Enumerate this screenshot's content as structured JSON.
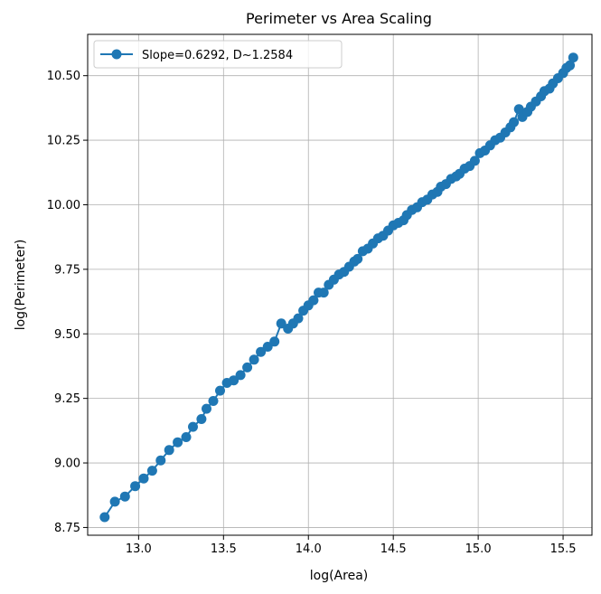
{
  "chart_data": {
    "type": "line",
    "title": "Perimeter vs Area Scaling",
    "xlabel": "log(Area)",
    "ylabel": "log(Perimeter)",
    "xlim": [
      12.7,
      15.67
    ],
    "ylim": [
      8.72,
      10.66
    ],
    "xticks": [
      "13.0",
      "13.5",
      "14.0",
      "14.5",
      "15.0",
      "15.5"
    ],
    "yticks": [
      "8.75",
      "9.00",
      "9.25",
      "9.50",
      "9.75",
      "10.00",
      "10.25",
      "10.50"
    ],
    "grid": true,
    "legend_position": "top-left",
    "color": "#1f77b4",
    "series": [
      {
        "name": "Slope=0.6292, D~1.2584",
        "x": [
          12.8,
          12.86,
          12.92,
          12.98,
          13.03,
          13.08,
          13.13,
          13.18,
          13.23,
          13.28,
          13.32,
          13.37,
          13.4,
          13.44,
          13.48,
          13.52,
          13.56,
          13.6,
          13.64,
          13.68,
          13.72,
          13.76,
          13.8,
          13.84,
          13.88,
          13.91,
          13.94,
          13.97,
          14.0,
          14.03,
          14.06,
          14.09,
          14.12,
          14.15,
          14.18,
          14.21,
          14.24,
          14.27,
          14.29,
          14.32,
          14.35,
          14.38,
          14.41,
          14.44,
          14.47,
          14.5,
          14.53,
          14.56,
          14.58,
          14.61,
          14.64,
          14.67,
          14.7,
          14.73,
          14.76,
          14.78,
          14.81,
          14.84,
          14.87,
          14.89,
          14.92,
          14.95,
          14.98,
          15.01,
          15.04,
          15.07,
          15.1,
          15.13,
          15.16,
          15.19,
          15.21,
          15.24,
          15.26,
          15.29,
          15.31,
          15.34,
          15.37,
          15.39,
          15.42,
          15.44,
          15.47,
          15.5,
          15.52,
          15.54,
          15.56
        ],
        "y": [
          8.79,
          8.85,
          8.87,
          8.91,
          8.94,
          8.97,
          9.01,
          9.05,
          9.08,
          9.1,
          9.14,
          9.17,
          9.21,
          9.24,
          9.28,
          9.31,
          9.32,
          9.34,
          9.37,
          9.4,
          9.43,
          9.45,
          9.47,
          9.54,
          9.52,
          9.54,
          9.56,
          9.59,
          9.61,
          9.63,
          9.66,
          9.66,
          9.69,
          9.71,
          9.73,
          9.74,
          9.76,
          9.78,
          9.79,
          9.82,
          9.83,
          9.85,
          9.87,
          9.88,
          9.9,
          9.92,
          9.93,
          9.94,
          9.96,
          9.98,
          9.99,
          10.01,
          10.02,
          10.04,
          10.05,
          10.07,
          10.08,
          10.1,
          10.11,
          10.12,
          10.14,
          10.15,
          10.17,
          10.2,
          10.21,
          10.23,
          10.25,
          10.26,
          10.28,
          10.3,
          10.32,
          10.37,
          10.34,
          10.36,
          10.38,
          10.4,
          10.42,
          10.44,
          10.45,
          10.47,
          10.49,
          10.51,
          10.53,
          10.54,
          10.57
        ]
      }
    ]
  }
}
